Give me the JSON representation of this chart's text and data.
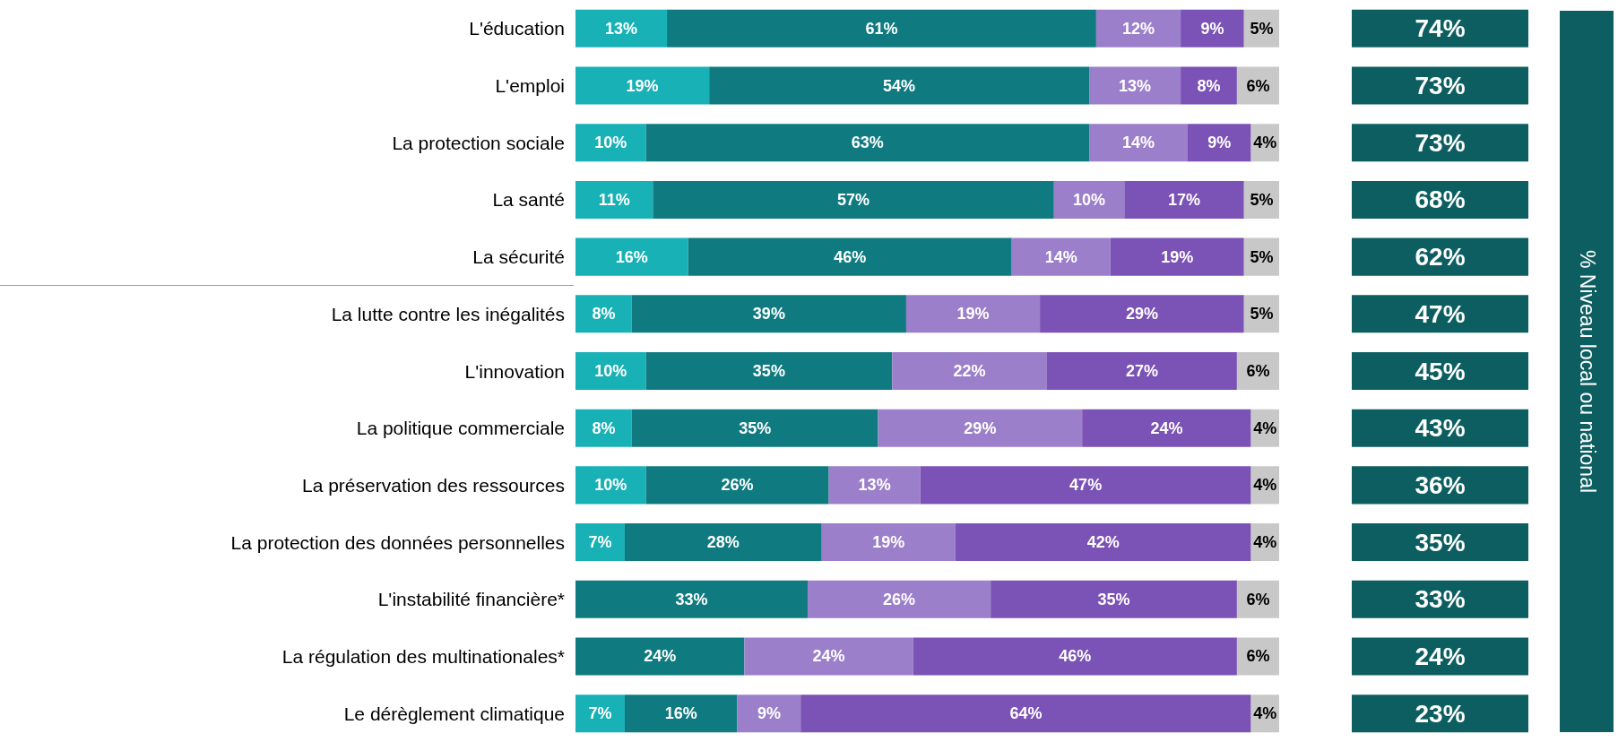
{
  "chart_data": [
    {
      "type": "bar",
      "orientation": "horizontal",
      "stacked": true,
      "tick_labels": "y",
      "xlim": [
        0,
        100
      ],
      "categories": [
        "L'éducation",
        "L'emploi",
        "La protection sociale",
        "La santé",
        "La sécurité",
        "La lutte contre les inégalités",
        "L'innovation",
        "La politique commerciale",
        "La préservation des ressources",
        "La protection des données personnelles",
        "L'instabilité financière*",
        "La régulation des multinationales*",
        "Le dérèglement climatique"
      ],
      "series": [
        {
          "color": "#17b1b6",
          "values": [
            13,
            19,
            10,
            11,
            16,
            8,
            10,
            8,
            10,
            7,
            null,
            null,
            7
          ],
          "value_labels": [
            "13%",
            "19%",
            "10%",
            "11%",
            "16%",
            "8%",
            "10%",
            "8%",
            "10%",
            "7%",
            null,
            null,
            "7%"
          ]
        },
        {
          "color": "#0f7b80",
          "values": [
            61,
            54,
            63,
            57,
            46,
            39,
            35,
            35,
            26,
            28,
            33,
            24,
            16
          ],
          "value_labels": [
            "61%",
            "54%",
            "63%",
            "57%",
            "46%",
            "39%",
            "35%",
            "35%",
            "26%",
            "28%",
            "33%",
            "24%",
            "16%"
          ]
        },
        {
          "color": "#9b7fca",
          "values": [
            12,
            13,
            14,
            10,
            14,
            19,
            22,
            29,
            13,
            19,
            26,
            24,
            9
          ],
          "value_labels": [
            "12%",
            "13%",
            "14%",
            "10%",
            "14%",
            "19%",
            "22%",
            "29%",
            "13%",
            "19%",
            "26%",
            "24%",
            "9%"
          ]
        },
        {
          "color": "#7b52b5",
          "values": [
            9,
            8,
            9,
            17,
            19,
            29,
            27,
            24,
            47,
            42,
            35,
            46,
            64
          ],
          "value_labels": [
            "9%",
            "8%",
            "9%",
            "17%",
            "19%",
            "29%",
            "27%",
            "24%",
            "47%",
            "42%",
            "35%",
            "46%",
            "64%"
          ]
        },
        {
          "color": "#c8c8c8",
          "values": [
            5,
            6,
            4,
            5,
            5,
            5,
            6,
            4,
            4,
            4,
            6,
            6,
            4
          ],
          "value_labels": [
            "5%",
            "6%",
            "4%",
            "5%",
            "5%",
            "5%",
            "6%",
            "4%",
            "4%",
            "4%",
            "6%",
            "6%",
            "4%"
          ]
        }
      ]
    },
    {
      "type": "other",
      "title": "% Niveau local ou national",
      "color": "#0d5e60",
      "categories": [
        null,
        null,
        null,
        null,
        null,
        null,
        null,
        null,
        null,
        null,
        null,
        null,
        null
      ],
      "value_labels": [
        "74%",
        "73%",
        "73%",
        "68%",
        "62%",
        "47%",
        "45%",
        "43%",
        "36%",
        "35%",
        "33%",
        "24%",
        "23%"
      ]
    }
  ]
}
